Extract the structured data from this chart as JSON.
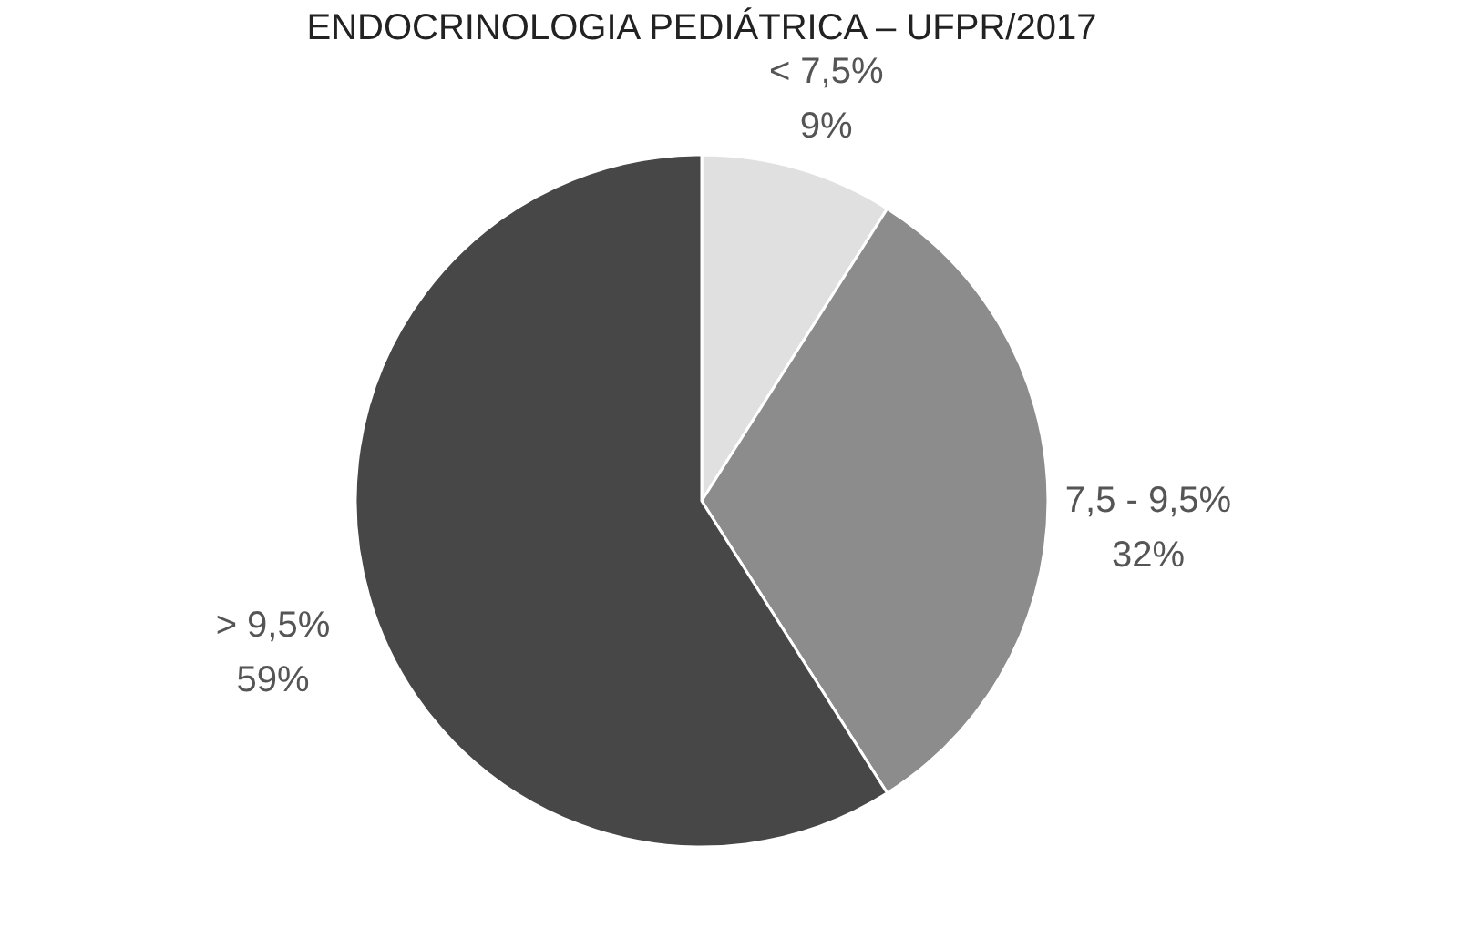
{
  "chart_data": {
    "type": "pie",
    "title": "ENDOCRINOLOGIA PEDIÁTRICA – UFPR/2017",
    "categories": [
      "< 7,5%",
      "7,5 - 9,5%",
      "> 9,5%"
    ],
    "values": [
      9,
      32,
      59
    ],
    "colors": [
      "#e0e0e0",
      "#8c8c8c",
      "#474747"
    ],
    "value_labels": [
      "9%",
      "32%",
      "59%"
    ],
    "legend": false
  }
}
